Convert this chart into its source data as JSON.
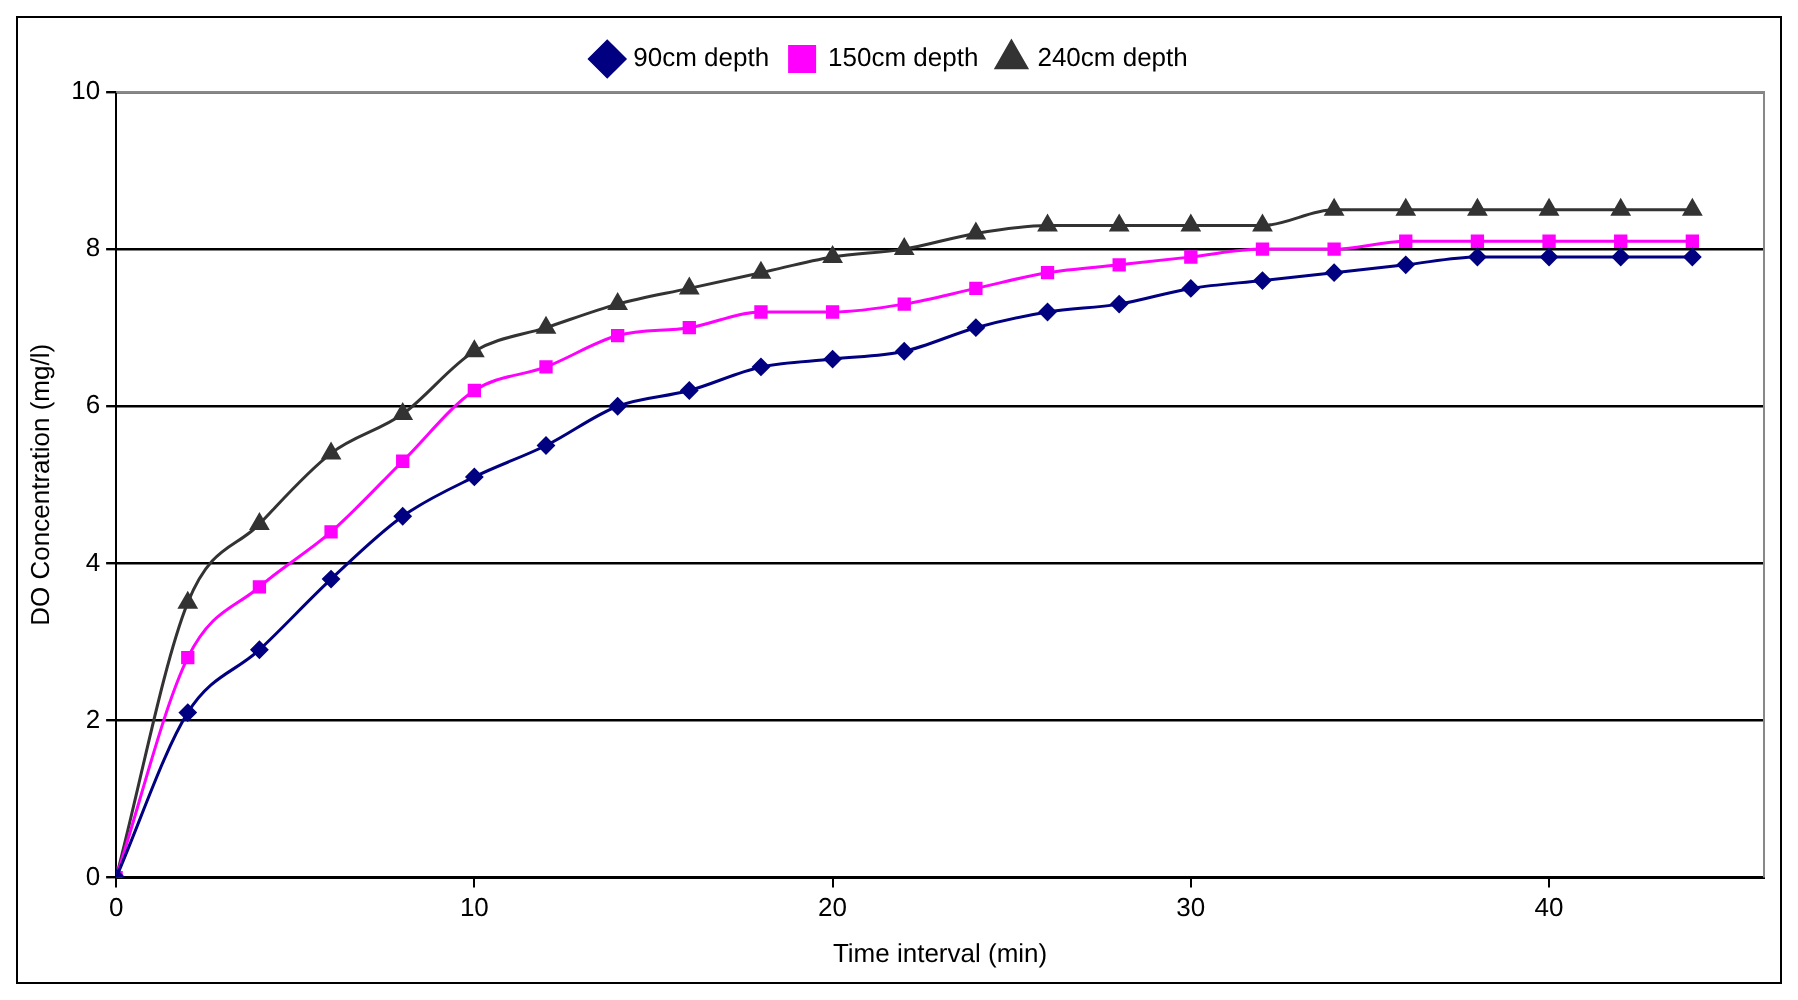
{
  "chart_data": {
    "type": "line",
    "xlabel": "Time interval (min)",
    "ylabel": "DO Concentration (mg/l)",
    "x": [
      0,
      2,
      4,
      6,
      8,
      10,
      12,
      14,
      16,
      18,
      20,
      22,
      24,
      26,
      28,
      30,
      32,
      34,
      36,
      38,
      40,
      42,
      44
    ],
    "series": [
      {
        "name": "90cm depth",
        "color": "#000080",
        "marker": "diamond",
        "values": [
          0,
          2.1,
          2.9,
          3.8,
          4.6,
          5.1,
          5.5,
          6.0,
          6.2,
          6.5,
          6.6,
          6.7,
          7.0,
          7.2,
          7.3,
          7.5,
          7.6,
          7.7,
          7.8,
          7.9,
          7.9,
          7.9,
          7.9
        ]
      },
      {
        "name": "150cm depth",
        "color": "#ff00ff",
        "marker": "square",
        "values": [
          0,
          2.8,
          3.7,
          4.4,
          5.3,
          6.2,
          6.5,
          6.9,
          7.0,
          7.2,
          7.2,
          7.3,
          7.5,
          7.7,
          7.8,
          7.9,
          8.0,
          8.0,
          8.1,
          8.1,
          8.1,
          8.1,
          8.1
        ]
      },
      {
        "name": "240cm depth",
        "color": "#333333",
        "marker": "triangle",
        "values": [
          0,
          3.5,
          4.5,
          5.4,
          5.9,
          6.7,
          7.0,
          7.3,
          7.5,
          7.7,
          7.9,
          8.0,
          8.2,
          8.3,
          8.3,
          8.3,
          8.3,
          8.5,
          8.5,
          8.5,
          8.5,
          8.5,
          8.5
        ]
      }
    ],
    "xlim": [
      0,
      46
    ],
    "xticks": [
      0,
      10,
      20,
      30,
      40
    ],
    "ylim": [
      0,
      10
    ],
    "yticks": [
      0,
      2,
      4,
      6,
      8,
      10
    ],
    "grid": "y",
    "legend": "top"
  }
}
